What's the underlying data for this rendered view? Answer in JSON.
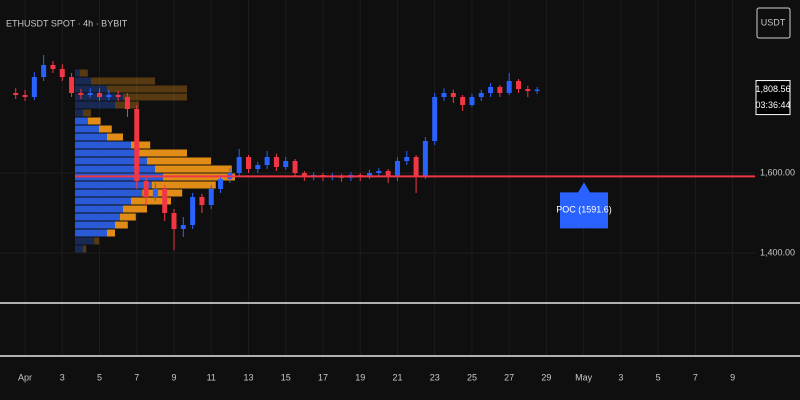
{
  "chart_data": {
    "type": "candlestick",
    "title": "ETHUSDT SPOT · 4h · BYBIT",
    "currency": "USDT",
    "last_price_label": "1,808.56",
    "countdown": "03:36:44",
    "poc": 1591.6,
    "poc_label": "POC (1591.6)",
    "up_color": "#2962ff",
    "down_color": "#f23645",
    "grid": true,
    "xlim": [
      -0.344,
      40.2
    ],
    "xticks": [
      {
        "value": 1,
        "label": "Apr"
      },
      3,
      5,
      7,
      9,
      11,
      13,
      15,
      17,
      19,
      21,
      23,
      25,
      27,
      29,
      {
        "value": 31,
        "label": "May"
      },
      {
        "value": 33,
        "label": "3"
      },
      {
        "value": 35,
        "label": "5"
      },
      {
        "value": 37,
        "label": "7"
      },
      {
        "value": 39,
        "label": "9"
      }
    ],
    "ylim": [
      1282.5,
      2032.5
    ],
    "yticks": [
      {
        "value": 1400,
        "label": "1,400.00"
      },
      {
        "value": 1600,
        "label": "1,600.00"
      }
    ],
    "x": [
      0.5,
      1,
      1.5,
      2,
      2.5,
      3,
      3.5,
      4,
      4.5,
      5,
      5.5,
      6,
      6.5,
      7,
      7.5,
      8,
      8.5,
      9,
      9.5,
      10,
      10.5,
      11,
      11.5,
      12,
      12.5,
      13,
      13.5,
      14,
      14.5,
      15,
      15.5,
      16,
      16.5,
      17,
      17.5,
      18,
      18.5,
      19,
      19.5,
      20,
      20.5,
      21,
      21.5,
      22,
      22.5,
      23,
      23.5,
      24,
      24.5,
      25,
      25.5,
      26,
      26.5,
      27,
      27.5,
      28,
      28.5
    ],
    "open": [
      1800,
      1795,
      1790,
      1840,
      1870,
      1860,
      1840,
      1800,
      1795,
      1800,
      1790,
      1795,
      1790,
      1760,
      1580,
      1540,
      1560,
      1500,
      1460,
      1470,
      1540,
      1520,
      1560,
      1585,
      1600,
      1640,
      1610,
      1620,
      1640,
      1615,
      1630,
      1600,
      1590,
      1595,
      1590,
      1592,
      1588,
      1595,
      1590,
      1600,
      1605,
      1590,
      1630,
      1640,
      1590,
      1680,
      1790,
      1800,
      1790,
      1770,
      1790,
      1800,
      1815,
      1800,
      1830,
      1810,
      1805
    ],
    "high": [
      1812,
      1808,
      1852,
      1895,
      1880,
      1872,
      1850,
      1810,
      1812,
      1812,
      1808,
      1806,
      1800,
      1770,
      1590,
      1575,
      1570,
      1510,
      1490,
      1550,
      1548,
      1570,
      1595,
      1612,
      1660,
      1645,
      1628,
      1655,
      1648,
      1640,
      1635,
      1605,
      1602,
      1600,
      1600,
      1598,
      1602,
      1600,
      1608,
      1612,
      1610,
      1640,
      1655,
      1645,
      1690,
      1800,
      1812,
      1808,
      1795,
      1798,
      1808,
      1825,
      1820,
      1850,
      1835,
      1818,
      1815
    ],
    "low": [
      1785,
      1780,
      1782,
      1830,
      1850,
      1830,
      1790,
      1785,
      1788,
      1780,
      1782,
      1780,
      1740,
      1560,
      1520,
      1530,
      1480,
      1407,
      1440,
      1460,
      1500,
      1510,
      1550,
      1575,
      1590,
      1600,
      1600,
      1610,
      1605,
      1608,
      1590,
      1580,
      1582,
      1580,
      1582,
      1578,
      1580,
      1580,
      1585,
      1592,
      1575,
      1580,
      1620,
      1550,
      1585,
      1670,
      1780,
      1775,
      1755,
      1765,
      1780,
      1790,
      1790,
      1795,
      1800,
      1790,
      1798
    ],
    "close": [
      1795,
      1790,
      1840,
      1870,
      1860,
      1840,
      1800,
      1795,
      1800,
      1790,
      1795,
      1790,
      1760,
      1580,
      1540,
      1560,
      1500,
      1460,
      1470,
      1540,
      1520,
      1560,
      1585,
      1600,
      1640,
      1610,
      1620,
      1640,
      1615,
      1630,
      1600,
      1590,
      1595,
      1590,
      1592,
      1588,
      1595,
      1590,
      1600,
      1605,
      1590,
      1630,
      1640,
      1590,
      1680,
      1790,
      1800,
      1790,
      1770,
      1790,
      1800,
      1815,
      1800,
      1830,
      1810,
      1805,
      1808.56
    ],
    "profile": {
      "levels": [
        1850,
        1830,
        1810,
        1790,
        1770,
        1750,
        1730,
        1710,
        1690,
        1670,
        1650,
        1630,
        1610,
        1590,
        1570,
        1550,
        1530,
        1510,
        1490,
        1470,
        1450,
        1430,
        1410
      ],
      "vlim": [
        0,
        100
      ],
      "value_area": [
        1440,
        1740
      ],
      "series": [
        {
          "color": "#2a5bd7",
          "values": [
            3,
            10,
            20,
            30,
            25,
            5,
            8,
            15,
            20,
            35,
            40,
            45,
            50,
            55,
            48,
            42,
            35,
            30,
            28,
            25,
            20,
            12,
            5
          ]
        },
        {
          "color": "#e08c16",
          "values": [
            5,
            40,
            50,
            40,
            15,
            5,
            8,
            8,
            10,
            12,
            30,
            40,
            48,
            45,
            40,
            25,
            25,
            15,
            10,
            8,
            5,
            3,
            2
          ]
        }
      ]
    }
  }
}
